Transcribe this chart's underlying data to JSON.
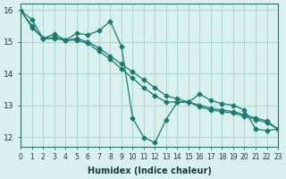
{
  "xlabel": "Humidex (Indice chaleur)",
  "ylabel": "",
  "xlim": [
    0,
    23
  ],
  "ylim": [
    11.7,
    16.2
  ],
  "yticks": [
    12,
    13,
    14,
    15,
    16
  ],
  "xticks": [
    0,
    1,
    2,
    3,
    4,
    5,
    6,
    7,
    8,
    9,
    10,
    11,
    12,
    13,
    14,
    15,
    16,
    17,
    18,
    19,
    20,
    21,
    22,
    23
  ],
  "xtick_labels": [
    "0",
    "1",
    "2",
    "3",
    "4",
    "5",
    "6",
    "7",
    "8",
    "9",
    "10",
    "11",
    "12",
    "13",
    "14",
    "15",
    "16",
    "17",
    "18",
    "19",
    "20",
    "21",
    "22",
    "23"
  ],
  "bg_color": "#d8f0ee",
  "grid_color": "#b0d8d4",
  "line_color": "#1a7a6e",
  "line_color2": "#1a7a6e",
  "series1_x": [
    0,
    1,
    2,
    3,
    4,
    5,
    6,
    7,
    8,
    9,
    10,
    11,
    12,
    13,
    14,
    15,
    16,
    17,
    18,
    19,
    20,
    21,
    22,
    23
  ],
  "series1_y": [
    15.98,
    15.7,
    15.1,
    15.25,
    15.05,
    15.27,
    15.22,
    15.35,
    15.65,
    14.85,
    12.6,
    11.98,
    11.82,
    12.55,
    13.1,
    13.1,
    13.35,
    13.15,
    13.05,
    13.0,
    12.85,
    12.25,
    12.2,
    12.25
  ],
  "series2_x": [
    0,
    1,
    2,
    3,
    4,
    5,
    6,
    7,
    8,
    9,
    10,
    11,
    12,
    13,
    14,
    15,
    16,
    17,
    18,
    19,
    20,
    21,
    22,
    23
  ],
  "series2_y": [
    15.98,
    15.5,
    15.1,
    15.15,
    15.05,
    15.1,
    15.0,
    14.8,
    14.55,
    14.3,
    14.05,
    13.8,
    13.55,
    13.3,
    13.2,
    13.1,
    13.0,
    12.9,
    12.85,
    12.8,
    12.7,
    12.6,
    12.5,
    12.25
  ],
  "series3_x": [
    0,
    1,
    2,
    3,
    4,
    5,
    6,
    7,
    8,
    9,
    10,
    11,
    12,
    13,
    14,
    15,
    16,
    17,
    18,
    19,
    20,
    21,
    22,
    23
  ],
  "series3_y": [
    15.98,
    15.45,
    15.1,
    15.1,
    15.05,
    15.05,
    14.95,
    14.7,
    14.45,
    14.15,
    13.85,
    13.55,
    13.3,
    13.1,
    13.1,
    13.1,
    12.95,
    12.85,
    12.8,
    12.75,
    12.65,
    12.55,
    12.45,
    12.25
  ]
}
